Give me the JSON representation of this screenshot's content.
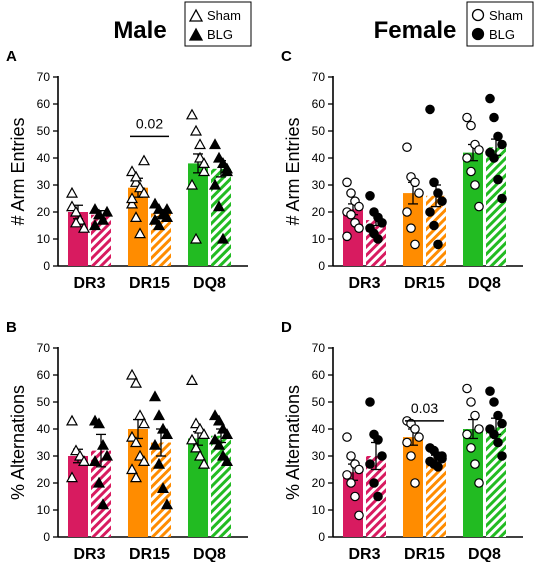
{
  "figure": {
    "panel_titles": {
      "male": "Male",
      "female": "Female"
    },
    "colors": {
      "DR3": "#d81b60",
      "DR15": "#ff8c00",
      "DQ8": "#22bb22"
    },
    "legend_male": {
      "sham": "Sham",
      "blg": "BLG",
      "markers": "triangle"
    },
    "legend_female": {
      "sham": "Sham",
      "blg": "BLG",
      "markers": "circle"
    }
  },
  "chart_data": [
    {
      "panel": "A",
      "type": "bar",
      "group": "Male",
      "marker": "triangle",
      "ylabel": "# Arm Entries",
      "ylim": [
        0,
        70
      ],
      "yticks": [
        0,
        10,
        20,
        30,
        40,
        50,
        60,
        70
      ],
      "categories": [
        "DR3",
        "DR15",
        "DQ8"
      ],
      "series": [
        {
          "name": "Sham",
          "values": [
            20,
            29,
            38
          ],
          "sem": [
            2.5,
            3.5,
            3.5
          ],
          "points": [
            [
              22,
              20,
              17,
              14,
              27,
              16
            ],
            [
              35,
              31,
              29,
              27,
              23,
              18,
              12,
              39,
              25,
              33
            ],
            [
              56,
              50,
              40,
              35,
              30,
              10,
              45,
              38
            ]
          ]
        },
        {
          "name": "BLG",
          "values": [
            19,
            19.5,
            36
          ],
          "sem": [
            1.5,
            1.3,
            3
          ],
          "points": [
            [
              21,
              19,
              17,
              20,
              15
            ],
            [
              23,
              21,
              19,
              18,
              17,
              15,
              19,
              21
            ],
            [
              45,
              40,
              38,
              35,
              30,
              22,
              10,
              36
            ]
          ]
        }
      ],
      "annotation": {
        "text": "0.02",
        "between": "DR15"
      }
    },
    {
      "panel": "B",
      "type": "bar",
      "group": "Male",
      "marker": "triangle",
      "ylabel": "% Alternations",
      "ylim": [
        0,
        70
      ],
      "yticks": [
        0,
        10,
        20,
        30,
        40,
        50,
        60,
        70
      ],
      "categories": [
        "DR3",
        "DR15",
        "DQ8"
      ],
      "series": [
        {
          "name": "Sham",
          "values": [
            30,
            40,
            36.5
          ],
          "sem": [
            2.5,
            3.5,
            2.5
          ],
          "points": [
            [
              43,
              32,
              30,
              28,
              22
            ],
            [
              60,
              57,
              45,
              42,
              37,
              35,
              30,
              28,
              25,
              22
            ],
            [
              58,
              42,
              40,
              38,
              36,
              33,
              30,
              27
            ]
          ]
        },
        {
          "name": "BLG",
          "values": [
            32,
            35,
            37.5
          ],
          "sem": [
            6,
            5,
            2.5
          ],
          "points": [
            [
              43,
              42,
              34,
              30,
              28,
              20,
              12
            ],
            [
              52,
              45,
              40,
              38,
              34,
              27,
              18,
              12
            ],
            [
              45,
              43,
              40,
              38,
              36,
              34,
              30,
              28
            ]
          ]
        }
      ]
    },
    {
      "panel": "C",
      "type": "bar",
      "group": "Female",
      "marker": "circle",
      "ylabel": "# Arm Entries",
      "ylim": [
        0,
        70
      ],
      "yticks": [
        0,
        10,
        20,
        30,
        40,
        50,
        60,
        70
      ],
      "categories": [
        "DR3",
        "DR15",
        "DQ8"
      ],
      "series": [
        {
          "name": "Sham",
          "values": [
            21,
            27,
            42
          ],
          "sem": [
            2,
            4,
            3
          ],
          "points": [
            [
              31,
              27,
              24,
              22,
              20,
              19,
              16,
              14,
              11
            ],
            [
              44,
              33,
              31,
              27,
              20,
              14,
              8
            ],
            [
              55,
              52,
              45,
              43,
              40,
              35,
              30,
              22
            ]
          ]
        },
        {
          "name": "BLG",
          "values": [
            17,
            26,
            44
          ],
          "sem": [
            2,
            4,
            3
          ],
          "points": [
            [
              26,
              20,
              18,
              16,
              14,
              12,
              10
            ],
            [
              58,
              31,
              27,
              24,
              20,
              15,
              8
            ],
            [
              62,
              55,
              48,
              45,
              42,
              40,
              32,
              25
            ]
          ]
        }
      ]
    },
    {
      "panel": "D",
      "type": "bar",
      "group": "Female",
      "marker": "circle",
      "ylabel": "% Alternations",
      "ylim": [
        0,
        70
      ],
      "yticks": [
        0,
        10,
        20,
        30,
        40,
        50,
        60,
        70
      ],
      "categories": [
        "DR3",
        "DR15",
        "DQ8"
      ],
      "series": [
        {
          "name": "Sham",
          "values": [
            24,
            37,
            40
          ],
          "sem": [
            3,
            3,
            3.5
          ],
          "points": [
            [
              37,
              30,
              27,
              25,
              23,
              20,
              15,
              8
            ],
            [
              43,
              42,
              40,
              37,
              35,
              30,
              20
            ],
            [
              55,
              50,
              45,
              40,
              38,
              33,
              27,
              20
            ]
          ]
        },
        {
          "name": "BLG",
          "values": [
            30,
            29,
            41
          ],
          "sem": [
            5,
            1.3,
            3
          ],
          "points": [
            [
              50,
              38,
              36,
              30,
              27,
              20,
              15
            ],
            [
              33,
              32,
              30,
              29,
              28,
              27,
              26,
              30
            ],
            [
              54,
              50,
              45,
              42,
              40,
              38,
              35,
              30
            ]
          ]
        }
      ],
      "annotation": {
        "text": "0.03",
        "between": "DR15"
      }
    }
  ]
}
